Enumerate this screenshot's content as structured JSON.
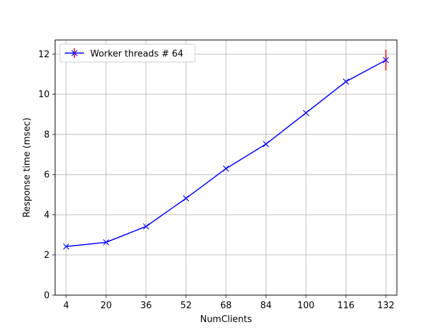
{
  "chart_data": {
    "type": "line",
    "title": "",
    "xlabel": "NumClients",
    "ylabel": "Response time (msec)",
    "x": [
      4,
      20,
      36,
      52,
      68,
      84,
      100,
      116,
      132
    ],
    "x_tick_labels": [
      "4",
      "20",
      "36",
      "52",
      "68",
      "84",
      "100",
      "116",
      "132"
    ],
    "y_ticks": [
      0,
      2,
      4,
      6,
      8,
      10,
      12
    ],
    "y_tick_labels": [
      "0",
      "2",
      "4",
      "6",
      "8",
      "10",
      "12"
    ],
    "xlim": [
      -0.4,
      136.4
    ],
    "ylim": [
      0,
      12.7
    ],
    "grid": true,
    "legend_position": "top-left",
    "series": [
      {
        "name": "Worker threads # 64",
        "color": "#0000ff",
        "marker": "x",
        "values": [
          2.42,
          2.63,
          3.42,
          4.82,
          6.3,
          7.52,
          9.07,
          10.63,
          11.7
        ],
        "error_bars": [
          {
            "x": 132,
            "lower": 11.18,
            "upper": 12.22,
            "color": "#ff0000"
          }
        ]
      }
    ]
  }
}
